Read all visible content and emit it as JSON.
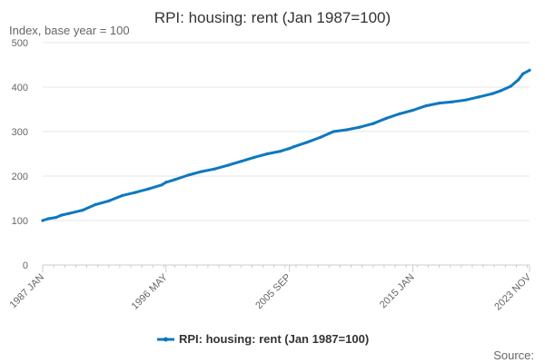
{
  "chart_data": {
    "type": "line",
    "title": "RPI: housing: rent (Jan 1987=100)",
    "subtitle": "Index, base year = 100",
    "ylim": [
      0,
      500
    ],
    "yticks": [
      0,
      100,
      200,
      300,
      400,
      500
    ],
    "xlim": [
      "1987-01",
      "2023-11"
    ],
    "xticks": [
      "1987 JAN",
      "1996 MAY",
      "2005 SEP",
      "2015 JAN",
      "2023 NOV"
    ],
    "grid": true,
    "legend_position": "bottom",
    "series": [
      {
        "name": "RPI: housing: rent (Jan 1987=100)",
        "color": "#0e78bf",
        "points": [
          [
            "1987-01",
            100
          ],
          [
            "1987-06",
            104
          ],
          [
            "1988-01",
            107
          ],
          [
            "1988-06",
            112
          ],
          [
            "1989-01",
            116
          ],
          [
            "1990-01",
            123
          ],
          [
            "1991-01",
            136
          ],
          [
            "1992-01",
            144
          ],
          [
            "1993-01",
            156
          ],
          [
            "1994-01",
            163
          ],
          [
            "1995-01",
            171
          ],
          [
            "1996-01",
            180
          ],
          [
            "1996-05",
            186
          ],
          [
            "1997-01",
            192
          ],
          [
            "1998-01",
            202
          ],
          [
            "1999-01",
            210
          ],
          [
            "2000-01",
            216
          ],
          [
            "2001-01",
            224
          ],
          [
            "2002-01",
            233
          ],
          [
            "2003-01",
            242
          ],
          [
            "2004-01",
            250
          ],
          [
            "2005-01",
            256
          ],
          [
            "2005-09",
            262
          ],
          [
            "2006-01",
            266
          ],
          [
            "2007-01",
            276
          ],
          [
            "2008-01",
            287
          ],
          [
            "2009-01",
            300
          ],
          [
            "2010-01",
            304
          ],
          [
            "2011-01",
            310
          ],
          [
            "2012-01",
            318
          ],
          [
            "2013-01",
            330
          ],
          [
            "2014-01",
            340
          ],
          [
            "2015-01",
            348
          ],
          [
            "2016-01",
            358
          ],
          [
            "2017-01",
            364
          ],
          [
            "2018-01",
            367
          ],
          [
            "2019-01",
            371
          ],
          [
            "2020-01",
            378
          ],
          [
            "2021-01",
            385
          ],
          [
            "2021-09",
            392
          ],
          [
            "2022-06",
            402
          ],
          [
            "2023-01",
            417
          ],
          [
            "2023-05",
            430
          ],
          [
            "2023-11",
            438
          ]
        ]
      }
    ],
    "source_label": "Source:"
  }
}
